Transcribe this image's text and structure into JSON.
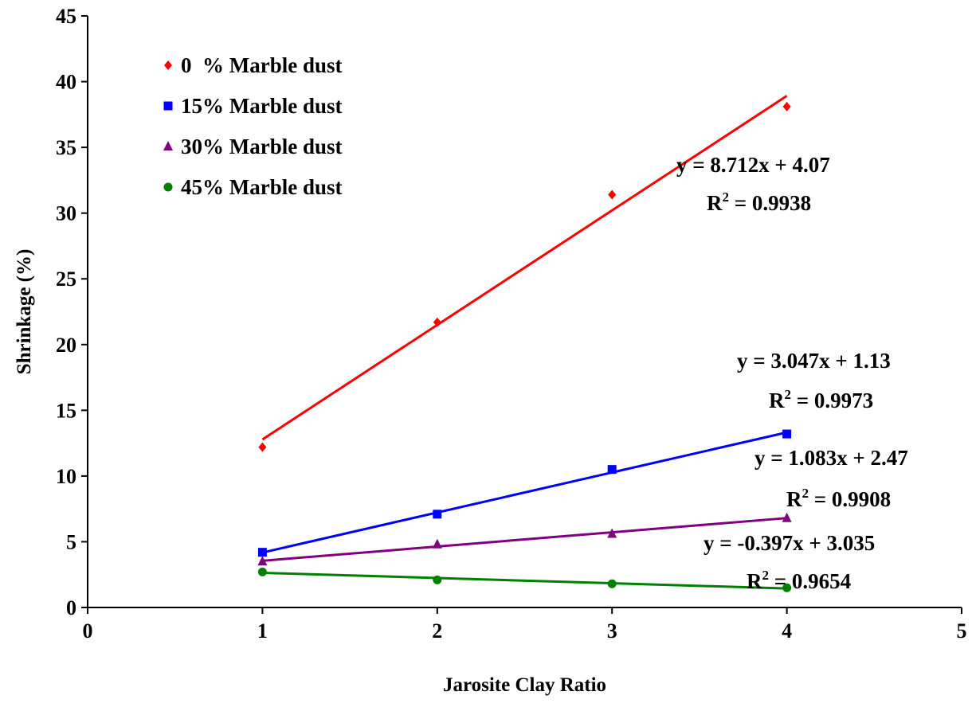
{
  "chart_data": {
    "type": "scatter",
    "xlabel": "Jarosite Clay Ratio",
    "ylabel": "Shrinkage (%)",
    "xlim": [
      0,
      5
    ],
    "ylim": [
      0,
      45
    ],
    "x_ticks": [
      "0",
      "1",
      "2",
      "3",
      "4",
      "5"
    ],
    "y_ticks": [
      "0",
      "5",
      "10",
      "15",
      "20",
      "25",
      "30",
      "35",
      "40",
      "45"
    ],
    "grid": false,
    "legend_position": "top-left",
    "series": [
      {
        "name": "0  % Marble dust",
        "marker": "diamond",
        "color": "#ff0000",
        "x": [
          1,
          2,
          3,
          4
        ],
        "y": [
          12.2,
          21.7,
          31.4,
          38.1
        ],
        "trendline": {
          "slope": 8.712,
          "intercept": 4.07,
          "x_range": [
            1,
            4
          ]
        },
        "equation": "y = 8.712x + 4.07",
        "r2_prefix": "R",
        "r2_sup": "2",
        "r2_value": " = 0.9938"
      },
      {
        "name": "15% Marble dust",
        "marker": "square",
        "color": "#0000ff",
        "x": [
          1,
          2,
          3,
          4
        ],
        "y": [
          4.2,
          7.1,
          10.5,
          13.2
        ],
        "trendline": {
          "slope": 3.047,
          "intercept": 1.13,
          "x_range": [
            1,
            4
          ]
        },
        "equation": "y = 3.047x + 1.13",
        "r2_prefix": "R",
        "r2_sup": "2",
        "r2_value": " = 0.9973"
      },
      {
        "name": "30% Marble dust",
        "marker": "triangle",
        "color": "#800080",
        "x": [
          1,
          2,
          3,
          4
        ],
        "y": [
          3.5,
          4.8,
          5.6,
          6.8
        ],
        "trendline": {
          "slope": 1.083,
          "intercept": 2.47,
          "x_range": [
            1,
            4
          ]
        },
        "equation": "y = 1.083x + 2.47",
        "r2_prefix": "R",
        "r2_sup": "2",
        "r2_value": " = 0.9908"
      },
      {
        "name": "45% Marble dust",
        "marker": "circle",
        "color": "#008000",
        "x": [
          1,
          2,
          3,
          4
        ],
        "y": [
          2.7,
          2.1,
          1.8,
          1.5
        ],
        "trendline": {
          "slope": -0.397,
          "intercept": 3.035,
          "x_range": [
            1,
            4
          ]
        },
        "equation": "y = -0.397x + 3.035",
        "r2_prefix": "R",
        "r2_sup": "2",
        "r2_value": " = 0.9654"
      }
    ]
  }
}
